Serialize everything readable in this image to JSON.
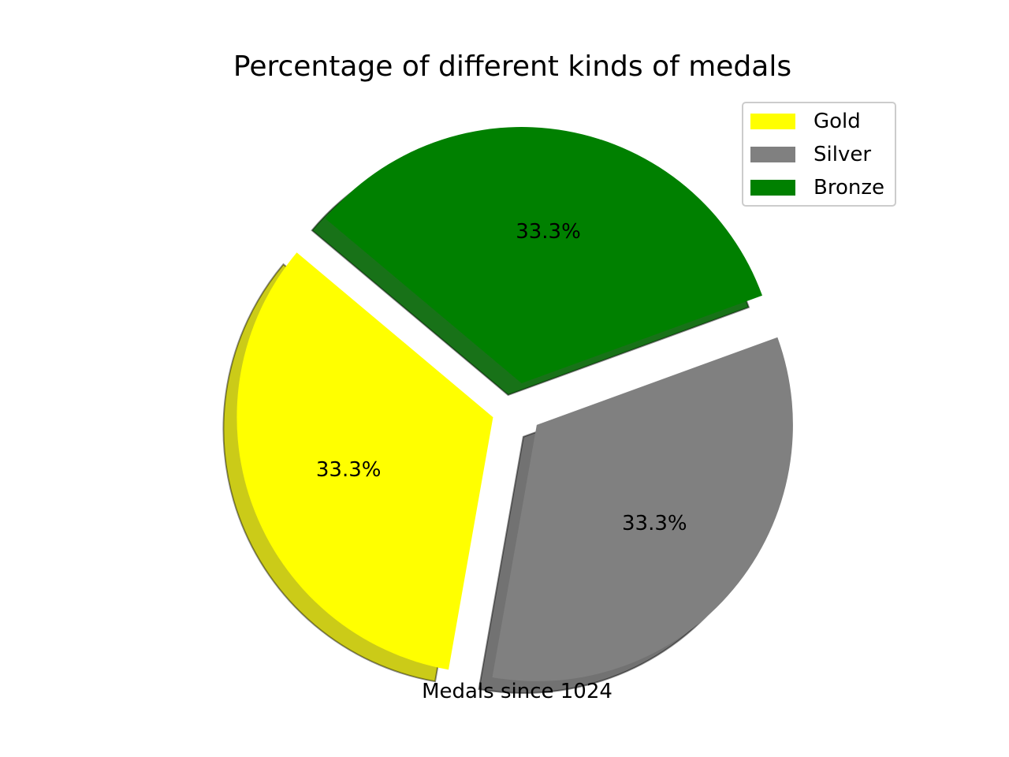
{
  "chart_data": {
    "type": "pie",
    "title": "Percentage of different kinds of medals",
    "xlabel": "Medals since 1024",
    "labels": [
      "Gold",
      "Silver",
      "Bronze"
    ],
    "values": [
      1,
      1,
      1
    ],
    "percent_labels": [
      "33.3%",
      "33.3%",
      "33.3%"
    ],
    "colors": [
      "#ffff00",
      "#808080",
      "#008000"
    ],
    "explode": [
      0.1,
      0.1,
      0.1
    ],
    "shadow": true,
    "start_angle_deg": 140,
    "legend_position": "upper right"
  }
}
